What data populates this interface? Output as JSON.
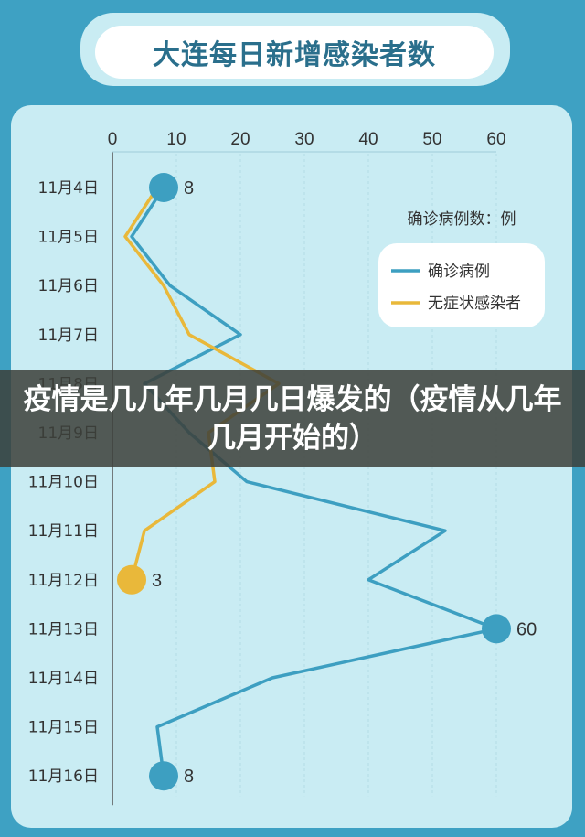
{
  "page_title": "大连每日新增感染者数",
  "overlay_caption": "疫情是几几年几月几日爆发的（疫情从几年几月开始的）",
  "legend": {
    "title": "确诊病例数：例",
    "confirmed_label": "确诊病例",
    "asymptomatic_label": "无症状感染者"
  },
  "colors": {
    "background": "#3ea1c3",
    "panel": "#c9ecf3",
    "confirmed": "#3d9fc1",
    "asymptomatic": "#e9b83a",
    "axis_text": "#333333"
  },
  "chart_data": {
    "type": "line",
    "title": "大连每日新增感染者数",
    "xlabel": "",
    "ylabel": "",
    "x_axis_position": "top",
    "xlim": [
      0,
      60
    ],
    "x_ticks": [
      0,
      10,
      20,
      30,
      40,
      50,
      60
    ],
    "categories": [
      "11月4日",
      "11月5日",
      "11月6日",
      "11月7日",
      "11月8日",
      "11月9日",
      "11月10日",
      "11月11日",
      "11月12日",
      "11月13日",
      "11月14日",
      "11月15日",
      "11月16日"
    ],
    "series": [
      {
        "name": "确诊病例",
        "color": "#3d9fc1",
        "values": [
          8,
          3,
          9,
          20,
          5,
          12,
          21,
          52,
          40,
          60,
          25,
          7,
          8
        ],
        "labeled_points": [
          {
            "index": 0,
            "label": "8"
          },
          {
            "index": 9,
            "label": "60"
          },
          {
            "index": 12,
            "label": "8"
          }
        ]
      },
      {
        "name": "无症状感染者",
        "color": "#e9b83a",
        "values": [
          7,
          2,
          8,
          12,
          26,
          15,
          16,
          5,
          3,
          null,
          null,
          null,
          null
        ],
        "labeled_points": [
          {
            "index": 8,
            "label": "3"
          }
        ]
      }
    ],
    "legend_position": "right",
    "grid": true
  }
}
